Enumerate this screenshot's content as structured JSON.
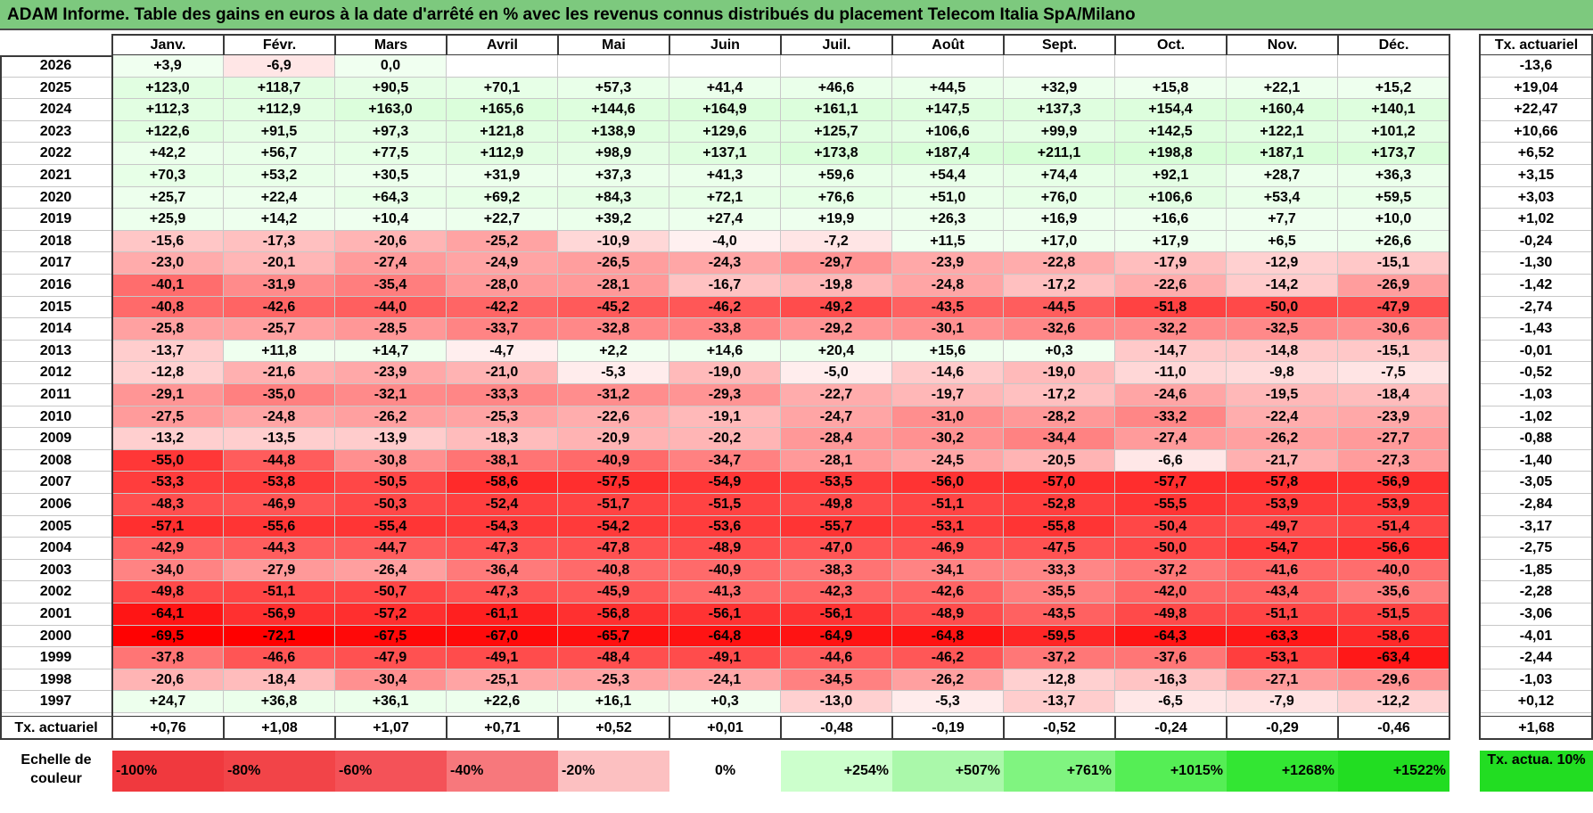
{
  "title": "ADAM Informe. Table des gains en euros à la date d'arrêté en % avec les revenus connus distribués du placement Telecom Italia SpA/Milano",
  "months": [
    "Janv.",
    "Févr.",
    "Mars",
    "Avril",
    "Mai",
    "Juin",
    "Juil.",
    "Août",
    "Sept.",
    "Oct.",
    "Nov.",
    "Déc."
  ],
  "actuarial_header": "Tx. actuariel",
  "rows": [
    {
      "year": "2026",
      "values": [
        "+3,9",
        "-6,9",
        "0,0",
        "",
        "",
        "",
        "",
        "",
        "",
        "",
        "",
        ""
      ],
      "rate": "-13,6"
    },
    {
      "year": "2025",
      "values": [
        "+123,0",
        "+118,7",
        "+90,5",
        "+70,1",
        "+57,3",
        "+41,4",
        "+46,6",
        "+44,5",
        "+32,9",
        "+15,8",
        "+22,1",
        "+15,2"
      ],
      "rate": "+19,04"
    },
    {
      "year": "2024",
      "values": [
        "+112,3",
        "+112,9",
        "+163,0",
        "+165,6",
        "+144,6",
        "+164,9",
        "+161,1",
        "+147,5",
        "+137,3",
        "+154,4",
        "+160,4",
        "+140,1"
      ],
      "rate": "+22,47"
    },
    {
      "year": "2023",
      "values": [
        "+122,6",
        "+91,5",
        "+97,3",
        "+121,8",
        "+138,9",
        "+129,6",
        "+125,7",
        "+106,6",
        "+99,9",
        "+142,5",
        "+122,1",
        "+101,2"
      ],
      "rate": "+10,66"
    },
    {
      "year": "2022",
      "values": [
        "+42,2",
        "+56,7",
        "+77,5",
        "+112,9",
        "+98,9",
        "+137,1",
        "+173,8",
        "+187,4",
        "+211,1",
        "+198,8",
        "+187,1",
        "+173,7"
      ],
      "rate": "+6,52"
    },
    {
      "year": "2021",
      "values": [
        "+70,3",
        "+53,2",
        "+30,5",
        "+31,9",
        "+37,3",
        "+41,3",
        "+59,6",
        "+54,4",
        "+74,4",
        "+92,1",
        "+28,7",
        "+36,3"
      ],
      "rate": "+3,15"
    },
    {
      "year": "2020",
      "values": [
        "+25,7",
        "+22,4",
        "+64,3",
        "+69,2",
        "+84,3",
        "+72,1",
        "+76,6",
        "+51,0",
        "+76,0",
        "+106,6",
        "+53,4",
        "+59,5"
      ],
      "rate": "+3,03"
    },
    {
      "year": "2019",
      "values": [
        "+25,9",
        "+14,2",
        "+10,4",
        "+22,7",
        "+39,2",
        "+27,4",
        "+19,9",
        "+26,3",
        "+16,9",
        "+16,6",
        "+7,7",
        "+10,0"
      ],
      "rate": "+1,02"
    },
    {
      "year": "2018",
      "values": [
        "-15,6",
        "-17,3",
        "-20,6",
        "-25,2",
        "-10,9",
        "-4,0",
        "-7,2",
        "+11,5",
        "+17,0",
        "+17,9",
        "+6,5",
        "+26,6"
      ],
      "rate": "-0,24"
    },
    {
      "year": "2017",
      "values": [
        "-23,0",
        "-20,1",
        "-27,4",
        "-24,9",
        "-26,5",
        "-24,3",
        "-29,7",
        "-23,9",
        "-22,8",
        "-17,9",
        "-12,9",
        "-15,1"
      ],
      "rate": "-1,30"
    },
    {
      "year": "2016",
      "values": [
        "-40,1",
        "-31,9",
        "-35,4",
        "-28,0",
        "-28,1",
        "-16,7",
        "-19,8",
        "-24,8",
        "-17,2",
        "-22,6",
        "-14,2",
        "-26,9"
      ],
      "rate": "-1,42"
    },
    {
      "year": "2015",
      "values": [
        "-40,8",
        "-42,6",
        "-44,0",
        "-42,2",
        "-45,2",
        "-46,2",
        "-49,2",
        "-43,5",
        "-44,5",
        "-51,8",
        "-50,0",
        "-47,9"
      ],
      "rate": "-2,74"
    },
    {
      "year": "2014",
      "values": [
        "-25,8",
        "-25,7",
        "-28,5",
        "-33,7",
        "-32,8",
        "-33,8",
        "-29,2",
        "-30,1",
        "-32,6",
        "-32,2",
        "-32,5",
        "-30,6"
      ],
      "rate": "-1,43"
    },
    {
      "year": "2013",
      "values": [
        "-13,7",
        "+11,8",
        "+14,7",
        "-4,7",
        "+2,2",
        "+14,6",
        "+20,4",
        "+15,6",
        "+0,3",
        "-14,7",
        "-14,8",
        "-15,1"
      ],
      "rate": "-0,01"
    },
    {
      "year": "2012",
      "values": [
        "-12,8",
        "-21,6",
        "-23,9",
        "-21,0",
        "-5,3",
        "-19,0",
        "-5,0",
        "-14,6",
        "-19,0",
        "-11,0",
        "-9,8",
        "-7,5"
      ],
      "rate": "-0,52"
    },
    {
      "year": "2011",
      "values": [
        "-29,1",
        "-35,0",
        "-32,1",
        "-33,3",
        "-31,2",
        "-29,3",
        "-22,7",
        "-19,7",
        "-17,2",
        "-24,6",
        "-19,5",
        "-18,4"
      ],
      "rate": "-1,03"
    },
    {
      "year": "2010",
      "values": [
        "-27,5",
        "-24,8",
        "-26,2",
        "-25,3",
        "-22,6",
        "-19,1",
        "-24,7",
        "-31,0",
        "-28,2",
        "-33,2",
        "-22,4",
        "-23,9"
      ],
      "rate": "-1,02"
    },
    {
      "year": "2009",
      "values": [
        "-13,2",
        "-13,5",
        "-13,9",
        "-18,3",
        "-20,9",
        "-20,2",
        "-28,4",
        "-30,2",
        "-34,4",
        "-27,4",
        "-26,2",
        "-27,7"
      ],
      "rate": "-0,88"
    },
    {
      "year": "2008",
      "values": [
        "-55,0",
        "-44,8",
        "-30,8",
        "-38,1",
        "-40,9",
        "-34,7",
        "-28,1",
        "-24,5",
        "-20,5",
        "-6,6",
        "-21,7",
        "-27,3"
      ],
      "rate": "-1,40"
    },
    {
      "year": "2007",
      "values": [
        "-53,3",
        "-53,8",
        "-50,5",
        "-58,6",
        "-57,5",
        "-54,9",
        "-53,5",
        "-56,0",
        "-57,0",
        "-57,7",
        "-57,8",
        "-56,9"
      ],
      "rate": "-3,05"
    },
    {
      "year": "2006",
      "values": [
        "-48,3",
        "-46,9",
        "-50,3",
        "-52,4",
        "-51,7",
        "-51,5",
        "-49,8",
        "-51,1",
        "-52,8",
        "-55,5",
        "-53,9",
        "-53,9"
      ],
      "rate": "-2,84"
    },
    {
      "year": "2005",
      "values": [
        "-57,1",
        "-55,6",
        "-55,4",
        "-54,3",
        "-54,2",
        "-53,6",
        "-55,7",
        "-53,1",
        "-55,8",
        "-50,4",
        "-49,7",
        "-51,4"
      ],
      "rate": "-3,17"
    },
    {
      "year": "2004",
      "values": [
        "-42,9",
        "-44,3",
        "-44,7",
        "-47,3",
        "-47,8",
        "-48,9",
        "-47,0",
        "-46,9",
        "-47,5",
        "-50,0",
        "-54,7",
        "-56,6"
      ],
      "rate": "-2,75"
    },
    {
      "year": "2003",
      "values": [
        "-34,0",
        "-27,9",
        "-26,4",
        "-36,4",
        "-40,8",
        "-40,9",
        "-38,3",
        "-34,1",
        "-33,3",
        "-37,2",
        "-41,6",
        "-40,0"
      ],
      "rate": "-1,85"
    },
    {
      "year": "2002",
      "values": [
        "-49,8",
        "-51,1",
        "-50,7",
        "-47,3",
        "-45,9",
        "-41,3",
        "-42,3",
        "-42,6",
        "-35,5",
        "-42,0",
        "-43,4",
        "-35,6"
      ],
      "rate": "-2,28"
    },
    {
      "year": "2001",
      "values": [
        "-64,1",
        "-56,9",
        "-57,2",
        "-61,1",
        "-56,8",
        "-56,1",
        "-56,1",
        "-48,9",
        "-43,5",
        "-49,8",
        "-51,1",
        "-51,5"
      ],
      "rate": "-3,06"
    },
    {
      "year": "2000",
      "values": [
        "-69,5",
        "-72,1",
        "-67,5",
        "-67,0",
        "-65,7",
        "-64,8",
        "-64,9",
        "-64,8",
        "-59,5",
        "-64,3",
        "-63,3",
        "-58,6"
      ],
      "rate": "-4,01"
    },
    {
      "year": "1999",
      "values": [
        "-37,8",
        "-46,6",
        "-47,9",
        "-49,1",
        "-48,4",
        "-49,1",
        "-44,6",
        "-46,2",
        "-37,2",
        "-37,6",
        "-53,1",
        "-63,4"
      ],
      "rate": "-2,44"
    },
    {
      "year": "1998",
      "values": [
        "-20,6",
        "-18,4",
        "-30,4",
        "-25,1",
        "-25,3",
        "-24,1",
        "-34,5",
        "-26,2",
        "-12,8",
        "-16,3",
        "-27,1",
        "-29,6"
      ],
      "rate": "-1,03"
    },
    {
      "year": "1997",
      "values": [
        "+24,7",
        "+36,8",
        "+36,1",
        "+22,6",
        "+16,1",
        "+0,3",
        "-13,0",
        "-5,3",
        "-13,7",
        "-6,5",
        "-7,9",
        "-12,2"
      ],
      "rate": "+0,12"
    }
  ],
  "footer": {
    "label": "Tx. actuariel",
    "values": [
      "+0,76",
      "+1,08",
      "+1,07",
      "+0,71",
      "+0,52",
      "+0,01",
      "-0,48",
      "-0,19",
      "-0,52",
      "-0,24",
      "-0,29",
      "-0,46"
    ],
    "total": "+1,68"
  },
  "scale": {
    "label": "Echelle de couleur",
    "items": [
      {
        "text": "-100%",
        "color": "#f0393e"
      },
      {
        "text": "-80%",
        "color": "#f24448"
      },
      {
        "text": "-60%",
        "color": "#f45258"
      },
      {
        "text": "-40%",
        "color": "#f7787c"
      },
      {
        "text": "-20%",
        "color": "#fcc0c1"
      },
      {
        "text": "0%",
        "color": "#ffffff"
      },
      {
        "text": "+254%",
        "color": "#ccffcc"
      },
      {
        "text": "+507%",
        "color": "#aaf8aa"
      },
      {
        "text": "+761%",
        "color": "#80f480"
      },
      {
        "text": "+1015%",
        "color": "#55ee55"
      },
      {
        "text": "+1268%",
        "color": "#33e633"
      },
      {
        "text": "+1522%",
        "color": "#22dd22"
      }
    ],
    "last_label": "Tx. actua. 10%",
    "last_color": "#22dd22"
  },
  "colors": {
    "title_bg": "#7dc97e",
    "zero": "#ffffff",
    "positive_max": "#22dd22",
    "negative_max": "#ff0000"
  }
}
